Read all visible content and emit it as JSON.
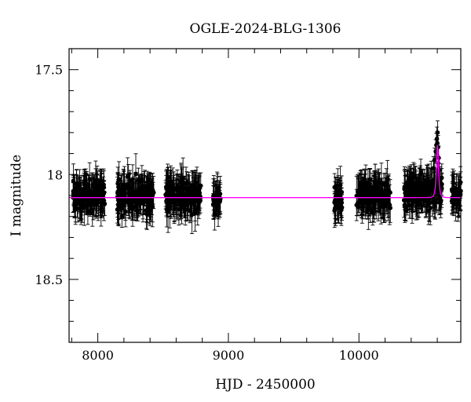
{
  "chart_data": {
    "type": "scatter",
    "title": "OGLE-2024-BLG-1306",
    "xlabel": "HJD - 2450000",
    "ylabel": "I magnitude",
    "xlim": [
      7780,
      10780
    ],
    "ylim": [
      18.8,
      17.4
    ],
    "y_inverted": true,
    "xticks": [
      8000,
      9000,
      10000
    ],
    "xtick_labels": [
      "8000",
      "9000",
      "10000"
    ],
    "yticks": [
      17.5,
      18,
      18.5
    ],
    "ytick_labels": [
      "17.5",
      "18",
      "18.5"
    ],
    "x_minor_step": 200,
    "y_minor_step": 0.1,
    "grid": false,
    "baseline_mag": 18.11,
    "series": [
      {
        "kind": "data",
        "marker": "filled-circle",
        "color": "#000000",
        "typical_error_mag": 0.07,
        "seasons": [
          {
            "x_start": 7810,
            "x_end": 8060,
            "mean_mag": 18.1,
            "scatter_mag": 0.05
          },
          {
            "x_start": 8150,
            "x_end": 8430,
            "mean_mag": 18.1,
            "scatter_mag": 0.05
          },
          {
            "x_start": 8520,
            "x_end": 8790,
            "mean_mag": 18.1,
            "scatter_mag": 0.05
          },
          {
            "x_start": 8880,
            "x_end": 8940,
            "mean_mag": 18.12,
            "scatter_mag": 0.04
          },
          {
            "x_start": 9810,
            "x_end": 9870,
            "mean_mag": 18.12,
            "scatter_mag": 0.06
          },
          {
            "x_start": 9980,
            "x_end": 10240,
            "mean_mag": 18.1,
            "scatter_mag": 0.05
          },
          {
            "x_start": 10340,
            "x_end": 10640,
            "mean_mag": 18.09,
            "scatter_mag": 0.05
          },
          {
            "x_start": 10710,
            "x_end": 10780,
            "mean_mag": 18.1,
            "scatter_mag": 0.04
          }
        ],
        "event_points": [
          {
            "x": 10570,
            "y": 17.97
          },
          {
            "x": 10580,
            "y": 17.93
          },
          {
            "x": 10588,
            "y": 17.89
          },
          {
            "x": 10593,
            "y": 17.86
          },
          {
            "x": 10597,
            "y": 17.83
          },
          {
            "x": 10600,
            "y": 17.85
          },
          {
            "x": 10602,
            "y": 17.8
          },
          {
            "x": 10606,
            "y": 17.87
          },
          {
            "x": 10610,
            "y": 17.92
          },
          {
            "x": 10615,
            "y": 17.98
          },
          {
            "x": 10622,
            "y": 18.03
          }
        ]
      },
      {
        "kind": "model",
        "color": "#ff00ff",
        "model": "single-lens",
        "baseline_mag": 18.11,
        "peak_x": 10601,
        "peak_mag": 17.86,
        "t_E_days": 9
      }
    ]
  }
}
